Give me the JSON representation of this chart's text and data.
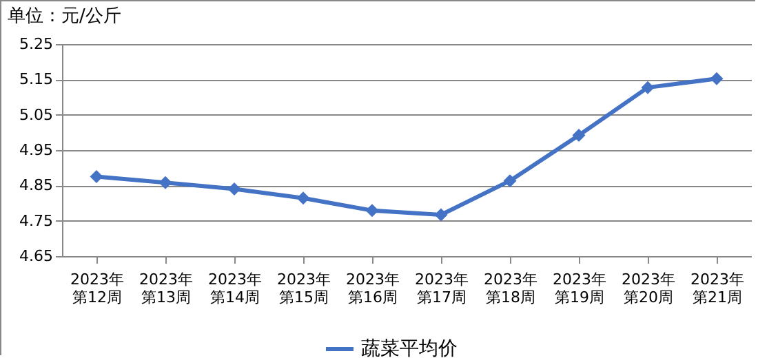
{
  "chart_data": {
    "type": "line",
    "ylabel": "单位：元/公斤",
    "categories": [
      "2023年第12周",
      "2023年第13周",
      "2023年第14周",
      "2023年第15周",
      "2023年第16周",
      "2023年第17周",
      "2023年第18周",
      "2023年第19周",
      "2023年第20周",
      "2023年第21周"
    ],
    "series": [
      {
        "name": "蔬菜平均价",
        "color": "#4472c4",
        "values": [
          4.875,
          4.858,
          4.84,
          4.814,
          4.779,
          4.767,
          4.863,
          4.992,
          5.127,
          5.152
        ]
      }
    ],
    "ylim": [
      4.65,
      5.25
    ],
    "yticks": [
      4.65,
      4.75,
      4.85,
      4.95,
      5.05,
      5.15,
      5.25
    ],
    "grid": "y",
    "legend": "bottom",
    "marker": "diamond",
    "line_style": "solid"
  }
}
